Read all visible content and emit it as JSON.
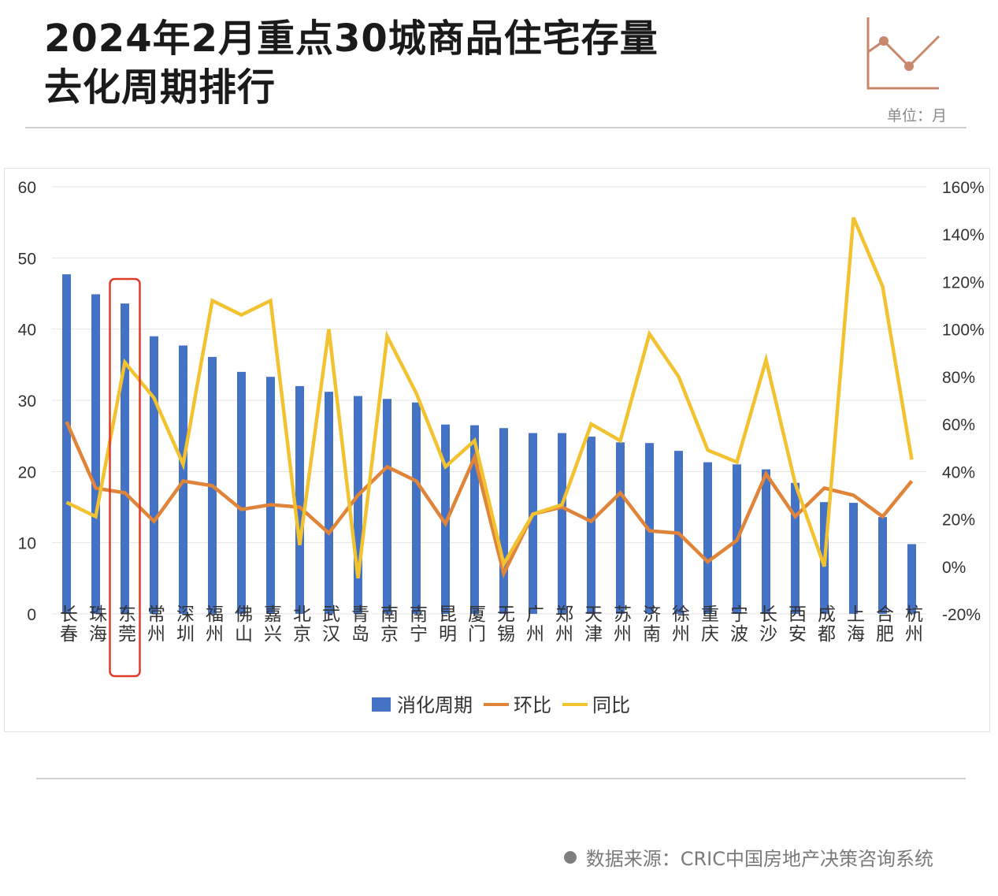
{
  "header": {
    "title_line1": "2024年2月重点30城商品住宅存量",
    "title_line2": "去化周期排行",
    "unit": "单位：月"
  },
  "footer": {
    "source": "数据来源：CRIC中国房地产决策咨询系统"
  },
  "colors": {
    "bar": "#4472c4",
    "mom": "#e0843a",
    "yoy": "#f2c230",
    "highlight": "#e03a2a",
    "deco": "#c9876b",
    "grid": "#e4e4e4"
  },
  "chart_data": {
    "type": "bar",
    "categories": [
      "长春",
      "珠海",
      "东莞",
      "常州",
      "深圳",
      "福州",
      "佛山",
      "嘉兴",
      "北京",
      "武汉",
      "青岛",
      "南京",
      "南宁",
      "昆明",
      "厦门",
      "无锡",
      "广州",
      "郑州",
      "天津",
      "苏州",
      "济南",
      "徐州",
      "重庆",
      "宁波",
      "长沙",
      "西安",
      "成都",
      "上海",
      "合肥",
      "杭州"
    ],
    "highlight_category": "东莞",
    "left_axis": {
      "min": 0,
      "max": 60,
      "ticks": [
        "0",
        "10",
        "20",
        "30",
        "40",
        "50",
        "60"
      ]
    },
    "right_axis": {
      "min": -20,
      "max": 160,
      "ticks": [
        "-20%",
        "0%",
        "20%",
        "40%",
        "60%",
        "80%",
        "100%",
        "120%",
        "140%",
        "160%"
      ]
    },
    "grid": true,
    "legend_position": "bottom",
    "series": [
      {
        "name": "消化周期",
        "type": "bar",
        "axis": "left",
        "values": [
          47.7,
          44.9,
          43.6,
          39.0,
          37.7,
          36.1,
          34.0,
          33.3,
          32.0,
          31.2,
          30.6,
          30.2,
          29.7,
          26.6,
          26.5,
          26.1,
          25.4,
          25.4,
          24.9,
          24.1,
          24.0,
          22.9,
          21.3,
          21.0,
          20.3,
          18.4,
          15.7,
          15.6,
          13.6,
          9.8
        ]
      },
      {
        "name": "环比",
        "type": "line",
        "axis": "right",
        "values": [
          61,
          33,
          31,
          19,
          36,
          34,
          24,
          26,
          25,
          14,
          30,
          42,
          36,
          18,
          46,
          -3,
          22,
          25,
          19,
          31,
          15,
          14,
          2,
          11,
          39,
          21,
          33,
          30,
          21,
          36
        ]
      },
      {
        "name": "同比",
        "type": "line",
        "axis": "right",
        "values": [
          27,
          21,
          86,
          71,
          43,
          112,
          106,
          112,
          9,
          100,
          -5,
          97,
          73,
          42,
          53,
          1,
          22,
          26,
          60,
          53,
          98,
          80,
          49,
          44,
          87,
          35,
          0,
          147,
          118,
          45
        ]
      }
    ]
  }
}
